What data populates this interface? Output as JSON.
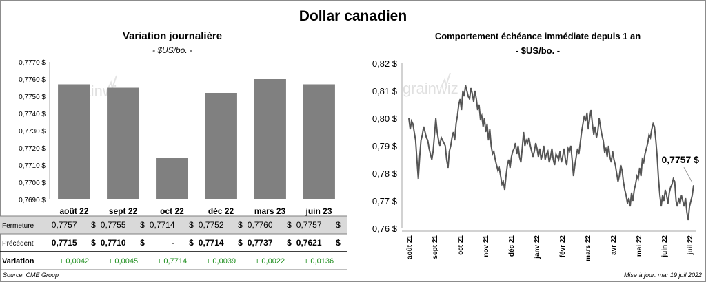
{
  "title": "Dollar canadien",
  "left_chart": {
    "title": "Variation  journalière",
    "subtitle": "- $US/bo. -"
  },
  "right_chart": {
    "title": "Comportement échéance immédiate depuis 1 an",
    "subtitle": "- $US/bo. -",
    "last_label": "0,7757 $"
  },
  "logo": {
    "text": "grainwiz"
  },
  "table": {
    "rows": [
      {
        "label": "Fermeture",
        "cells": [
          "0,7757",
          "0,7755",
          "0,7714",
          "0,7752",
          "0,7760",
          "0,7757"
        ],
        "unit": "$"
      },
      {
        "label": "Précédent",
        "cells": [
          "0,7715",
          "0,7710",
          "-",
          "0,7714",
          "0,7737",
          "0,7621"
        ],
        "unit": "$"
      },
      {
        "label": "Variation",
        "cells": [
          "+ 0,0042",
          "+ 0,0045",
          "+ 0,7714",
          "+ 0,0039",
          "+ 0,0022",
          "+ 0,0136"
        ]
      }
    ],
    "positive_color": "#1a8c1a",
    "highlight_color": "#d9d9d9"
  },
  "footer": {
    "source": "Source: CME Group",
    "updated": "Mise à jour: mar 19 juil 2022"
  },
  "chart_data": [
    {
      "type": "bar",
      "categories": [
        "août 22",
        "sept 22",
        "oct 22",
        "déc 22",
        "mars 23",
        "juin 23"
      ],
      "values": [
        0.7757,
        0.7755,
        0.7714,
        0.7752,
        0.776,
        0.7757
      ],
      "ylim": [
        0.769,
        0.777
      ],
      "yticks": [
        "0,7690 $",
        "0,7700 $",
        "0,7710 $",
        "0,7720 $",
        "0,7730 $",
        "0,7740 $",
        "0,7750 $",
        "0,7760 $",
        "0,7770 $"
      ],
      "bar_color": "#808080",
      "grid": false
    },
    {
      "type": "line",
      "xlabels": [
        "août 21",
        "sept 21",
        "oct 21",
        "nov 21",
        "déc 21",
        "janv 22",
        "févr 22",
        "mars 22",
        "avr 22",
        "mai 22",
        "juin 22",
        "juil 22"
      ],
      "yticks": [
        "0,76 $",
        "0,77 $",
        "0,78 $",
        "0,79 $",
        "0,80 $",
        "0,81 $",
        "0,82 $"
      ],
      "ylim": [
        0.76,
        0.82
      ],
      "line_color": "#555555",
      "grid": false,
      "values": [
        0.8,
        0.796,
        0.799,
        0.798,
        0.795,
        0.792,
        0.785,
        0.778,
        0.786,
        0.792,
        0.794,
        0.797,
        0.795,
        0.793,
        0.792,
        0.789,
        0.787,
        0.785,
        0.788,
        0.794,
        0.8,
        0.795,
        0.792,
        0.79,
        0.793,
        0.792,
        0.791,
        0.79,
        0.785,
        0.782,
        0.788,
        0.79,
        0.793,
        0.795,
        0.792,
        0.798,
        0.801,
        0.805,
        0.807,
        0.803,
        0.81,
        0.808,
        0.812,
        0.81,
        0.808,
        0.807,
        0.811,
        0.809,
        0.806,
        0.81,
        0.807,
        0.803,
        0.805,
        0.8,
        0.801,
        0.797,
        0.8,
        0.795,
        0.798,
        0.792,
        0.796,
        0.79,
        0.787,
        0.788,
        0.785,
        0.783,
        0.781,
        0.782,
        0.779,
        0.776,
        0.777,
        0.774,
        0.779,
        0.783,
        0.785,
        0.782,
        0.786,
        0.788,
        0.789,
        0.791,
        0.787,
        0.79,
        0.786,
        0.784,
        0.789,
        0.795,
        0.79,
        0.792,
        0.791,
        0.793,
        0.79,
        0.788,
        0.786,
        0.788,
        0.791,
        0.789,
        0.786,
        0.789,
        0.785,
        0.787,
        0.79,
        0.785,
        0.787,
        0.788,
        0.784,
        0.786,
        0.789,
        0.785,
        0.783,
        0.787,
        0.786,
        0.785,
        0.788,
        0.784,
        0.786,
        0.789,
        0.785,
        0.783,
        0.789,
        0.788,
        0.79,
        0.785,
        0.779,
        0.783,
        0.786,
        0.789,
        0.787,
        0.791,
        0.795,
        0.798,
        0.801,
        0.799,
        0.802,
        0.796,
        0.8,
        0.803,
        0.798,
        0.794,
        0.797,
        0.793,
        0.795,
        0.8,
        0.797,
        0.794,
        0.792,
        0.788,
        0.789,
        0.786,
        0.79,
        0.786,
        0.784,
        0.788,
        0.785,
        0.783,
        0.78,
        0.777,
        0.779,
        0.783,
        0.781,
        0.777,
        0.774,
        0.772,
        0.769,
        0.771,
        0.768,
        0.773,
        0.77,
        0.774,
        0.776,
        0.779,
        0.778,
        0.782,
        0.779,
        0.785,
        0.784,
        0.787,
        0.789,
        0.791,
        0.794,
        0.793,
        0.796,
        0.798,
        0.797,
        0.792,
        0.786,
        0.778,
        0.772,
        0.768,
        0.772,
        0.77,
        0.774,
        0.772,
        0.769,
        0.773,
        0.775,
        0.776,
        0.778,
        0.777,
        0.77,
        0.768,
        0.771,
        0.769,
        0.772,
        0.77,
        0.768,
        0.771,
        0.766,
        0.763,
        0.768,
        0.77,
        0.772,
        0.7757
      ]
    }
  ]
}
